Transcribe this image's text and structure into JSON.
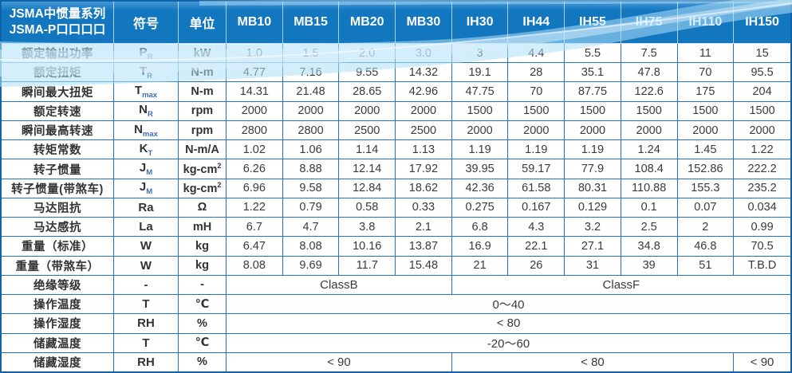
{
  "table": {
    "header": {
      "series_title_line1": "JSMA中惯量系列",
      "series_title_line2": "JSMA-P口口口口",
      "symbol_col": "符号",
      "unit_col": "单位",
      "models": [
        "MB10",
        "MB15",
        "MB20",
        "MB30",
        "IH30",
        "IH44",
        "IH55",
        "IH75",
        "IH110",
        "IH150"
      ]
    },
    "rows": [
      {
        "label": "额定输出功率",
        "symbol": "P",
        "sub": "R",
        "unit": "kW",
        "values": [
          "1.0",
          "1.5",
          "2.0",
          "3.0",
          "3",
          "4.4",
          "5.5",
          "7.5",
          "11",
          "15"
        ]
      },
      {
        "label": "额定扭矩",
        "symbol": "T",
        "sub": "R",
        "unit": "N-m",
        "values": [
          "4.77",
          "7.16",
          "9.55",
          "14.32",
          "19.1",
          "28",
          "35.1",
          "47.8",
          "70",
          "95.5"
        ]
      },
      {
        "label": "瞬间最大扭矩",
        "symbol": "T",
        "sub": "max",
        "unit": "N-m",
        "values": [
          "14.31",
          "21.48",
          "28.65",
          "42.96",
          "47.75",
          "70",
          "87.75",
          "122.6",
          "175",
          "204"
        ]
      },
      {
        "label": "额定转速",
        "symbol": "N",
        "sub": "R",
        "unit": "rpm",
        "values": [
          "2000",
          "2000",
          "2000",
          "2000",
          "1500",
          "1500",
          "1500",
          "1500",
          "1500",
          "1500"
        ]
      },
      {
        "label": "瞬间最高转速",
        "symbol": "N",
        "sub": "max",
        "unit": "rpm",
        "values": [
          "2800",
          "2800",
          "2500",
          "2500",
          "2000",
          "2000",
          "2000",
          "2000",
          "2000",
          "2000"
        ]
      },
      {
        "label": "转矩常数",
        "symbol": "K",
        "sub": "T",
        "unit": "N-m/A",
        "values": [
          "1.02",
          "1.06",
          "1.14",
          "1.13",
          "1.19",
          "1.19",
          "1.19",
          "1.24",
          "1.45",
          "1.22"
        ]
      },
      {
        "label": "转子惯量",
        "symbol": "J",
        "sub": "M",
        "unit": "kg-cm",
        "unit_sup": "2",
        "values": [
          "6.26",
          "8.88",
          "12.14",
          "17.92",
          "39.95",
          "59.17",
          "77.9",
          "108.4",
          "152.86",
          "222.2"
        ]
      },
      {
        "label": "转子惯量(带煞车)",
        "symbol": "J",
        "sub": "M",
        "unit": "kg-cm",
        "unit_sup": "2",
        "values": [
          "6.96",
          "9.58",
          "12.84",
          "18.62",
          "42.36",
          "61.58",
          "80.31",
          "110.88",
          "155.3",
          "235.2"
        ]
      },
      {
        "label": "马达阻抗",
        "symbol": "Ra",
        "unit": "Ω",
        "values": [
          "1.22",
          "0.79",
          "0.58",
          "0.33",
          "0.275",
          "0.167",
          "0.129",
          "0.1",
          "0.07",
          "0.034"
        ]
      },
      {
        "label": "马达感抗",
        "symbol": "La",
        "unit": "mH",
        "values": [
          "6.7",
          "4.7",
          "3.8",
          "2.1",
          "6.8",
          "4.3",
          "3.2",
          "2.5",
          "2",
          "0.99"
        ]
      },
      {
        "label": "重量（标准）",
        "symbol": "W",
        "unit": "kg",
        "values": [
          "6.47",
          "8.08",
          "10.16",
          "13.87",
          "16.9",
          "22.1",
          "27.1",
          "34.8",
          "46.8",
          "70.5"
        ]
      },
      {
        "label": "重量（带煞车）",
        "symbol": "W",
        "unit": "kg",
        "values": [
          "8.08",
          "9.69",
          "11.7",
          "15.48",
          "21",
          "26",
          "31",
          "39",
          "51",
          "T.B.D"
        ]
      },
      {
        "label": "绝缘等级",
        "symbol": "-",
        "unit": "-",
        "spans": [
          {
            "text": "ClassB",
            "cols": 4
          },
          {
            "text": "ClassF",
            "cols": 6
          }
        ]
      },
      {
        "label": "操作温度",
        "symbol": "T",
        "unit": "℃",
        "spans": [
          {
            "text": "0～40",
            "cols": 10
          }
        ]
      },
      {
        "label": "操作湿度",
        "symbol": "RH",
        "unit": "%",
        "spans": [
          {
            "text": "< 80",
            "cols": 10
          }
        ]
      },
      {
        "label": "储藏温度",
        "symbol": "T",
        "unit": "℃",
        "spans": [
          {
            "text": "-20～60",
            "cols": 10
          }
        ]
      },
      {
        "label": "储藏湿度",
        "symbol": "RH",
        "unit": "%",
        "spans": [
          {
            "text": "< 90",
            "cols": 4
          },
          {
            "text": "< 80",
            "cols": 5
          },
          {
            "text": "< 90",
            "cols": 1
          }
        ]
      }
    ],
    "colors": {
      "header_bg": "#1377c0",
      "border": "#2273b9",
      "outer_border": "#0f62a9",
      "text": "#333333",
      "subscript": "#3f6db3",
      "wave": "#aee0f7"
    }
  }
}
